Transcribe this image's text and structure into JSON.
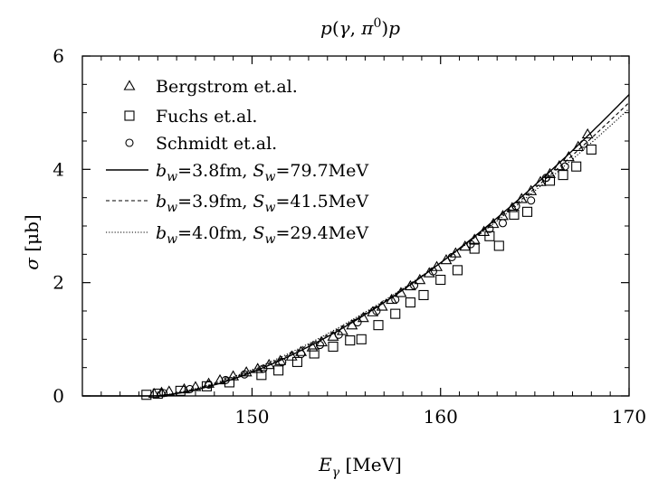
{
  "chart_data": {
    "type": "scatter",
    "title": "p(γ,π⁰)p",
    "xlabel": "E_γ [MeV]",
    "ylabel": "σ [μb]",
    "xlim": [
      141,
      170
    ],
    "ylim": [
      0,
      6
    ],
    "xticks": [
      150,
      160,
      170
    ],
    "yticks": [
      0,
      2,
      4,
      6
    ],
    "xtick_labels": [
      "150",
      "160",
      "170"
    ],
    "ytick_labels": [
      "0",
      "2",
      "4",
      "6"
    ],
    "grid": false,
    "legend_position": "top-left",
    "scatter_series": [
      {
        "name": "Bergstrom et.al.",
        "marker": "triangle",
        "points": [
          [
            144.8,
            0.04
          ],
          [
            145.2,
            0.06
          ],
          [
            145.6,
            0.08
          ],
          [
            146.4,
            0.12
          ],
          [
            147.0,
            0.16
          ],
          [
            147.7,
            0.22
          ],
          [
            148.3,
            0.28
          ],
          [
            149.0,
            0.35
          ],
          [
            149.7,
            0.42
          ],
          [
            150.3,
            0.48
          ],
          [
            150.9,
            0.55
          ],
          [
            151.5,
            0.62
          ],
          [
            152.1,
            0.7
          ],
          [
            152.6,
            0.78
          ],
          [
            153.2,
            0.86
          ],
          [
            153.7,
            0.95
          ],
          [
            154.3,
            1.05
          ],
          [
            154.8,
            1.15
          ],
          [
            155.3,
            1.25
          ],
          [
            155.9,
            1.38
          ],
          [
            156.4,
            1.48
          ],
          [
            156.9,
            1.58
          ],
          [
            157.4,
            1.7
          ],
          [
            157.9,
            1.82
          ],
          [
            158.4,
            1.94
          ],
          [
            158.9,
            2.05
          ],
          [
            159.4,
            2.17
          ],
          [
            159.8,
            2.28
          ],
          [
            160.3,
            2.4
          ],
          [
            160.8,
            2.52
          ],
          [
            161.3,
            2.64
          ],
          [
            161.8,
            2.76
          ],
          [
            162.3,
            2.9
          ],
          [
            162.8,
            3.04
          ],
          [
            163.3,
            3.18
          ],
          [
            163.8,
            3.32
          ],
          [
            164.3,
            3.48
          ],
          [
            164.8,
            3.62
          ],
          [
            165.3,
            3.78
          ],
          [
            165.8,
            3.92
          ],
          [
            166.3,
            4.06
          ],
          [
            166.8,
            4.22
          ],
          [
            167.3,
            4.4
          ],
          [
            167.8,
            4.62
          ]
        ]
      },
      {
        "name": "Fuchs et.al.",
        "marker": "square",
        "points": [
          [
            144.4,
            0.02
          ],
          [
            145.0,
            0.04
          ],
          [
            146.2,
            0.09
          ],
          [
            147.6,
            0.17
          ],
          [
            148.8,
            0.24
          ],
          [
            150.5,
            0.37
          ],
          [
            151.4,
            0.45
          ],
          [
            152.4,
            0.6
          ],
          [
            153.3,
            0.75
          ],
          [
            154.3,
            0.87
          ],
          [
            155.2,
            0.98
          ],
          [
            155.8,
            1.0
          ],
          [
            156.7,
            1.25
          ],
          [
            157.6,
            1.45
          ],
          [
            158.4,
            1.65
          ],
          [
            159.1,
            1.78
          ],
          [
            160.0,
            2.05
          ],
          [
            160.9,
            2.22
          ],
          [
            161.8,
            2.6
          ],
          [
            162.6,
            2.82
          ],
          [
            163.1,
            2.65
          ],
          [
            163.9,
            3.2
          ],
          [
            164.6,
            3.25
          ],
          [
            165.8,
            3.8
          ],
          [
            166.5,
            3.9
          ],
          [
            167.2,
            4.05
          ],
          [
            168.0,
            4.35
          ]
        ]
      },
      {
        "name": "Schmidt et.al.",
        "marker": "circle",
        "points": [
          [
            145.3,
            0.05
          ],
          [
            146.7,
            0.12
          ],
          [
            147.7,
            0.2
          ],
          [
            148.6,
            0.28
          ],
          [
            149.6,
            0.38
          ],
          [
            150.6,
            0.48
          ],
          [
            151.6,
            0.6
          ],
          [
            152.6,
            0.74
          ],
          [
            153.6,
            0.9
          ],
          [
            154.6,
            1.08
          ],
          [
            155.6,
            1.3
          ],
          [
            156.6,
            1.5
          ],
          [
            157.6,
            1.7
          ],
          [
            158.6,
            1.95
          ],
          [
            159.6,
            2.2
          ],
          [
            160.6,
            2.45
          ],
          [
            161.6,
            2.68
          ],
          [
            162.6,
            2.95
          ],
          [
            163.3,
            3.05
          ],
          [
            164.0,
            3.35
          ],
          [
            164.8,
            3.45
          ],
          [
            165.6,
            3.85
          ],
          [
            166.6,
            4.05
          ],
          [
            167.6,
            4.45
          ]
        ]
      }
    ],
    "line_series": [
      {
        "name": "b_w=3.8fm, S_w=79.7MeV",
        "legend_parts": [
          "b",
          "w",
          "=3.8fm, ",
          "S",
          "w",
          "=79.7MeV"
        ],
        "dash": "solid",
        "end_value": 5.32
      },
      {
        "name": "b_w=3.9fm, S_w=41.5MeV",
        "legend_parts": [
          "b",
          "w",
          "=3.9fm, ",
          "S",
          "w",
          "=41.5MeV"
        ],
        "dash": "dashed",
        "end_value": 5.18
      },
      {
        "name": "b_w=4.0fm, S_w=29.4MeV",
        "legend_parts": [
          "b",
          "w",
          "=4.0fm, ",
          "S",
          "w",
          "=29.4MeV"
        ],
        "dash": "dotted",
        "end_value": 5.07
      }
    ],
    "line_threshold": 144.7,
    "line_mid": {
      "x": 160,
      "y": 2.35
    },
    "colors": {
      "ink": "#000000",
      "background": "#ffffff"
    }
  }
}
